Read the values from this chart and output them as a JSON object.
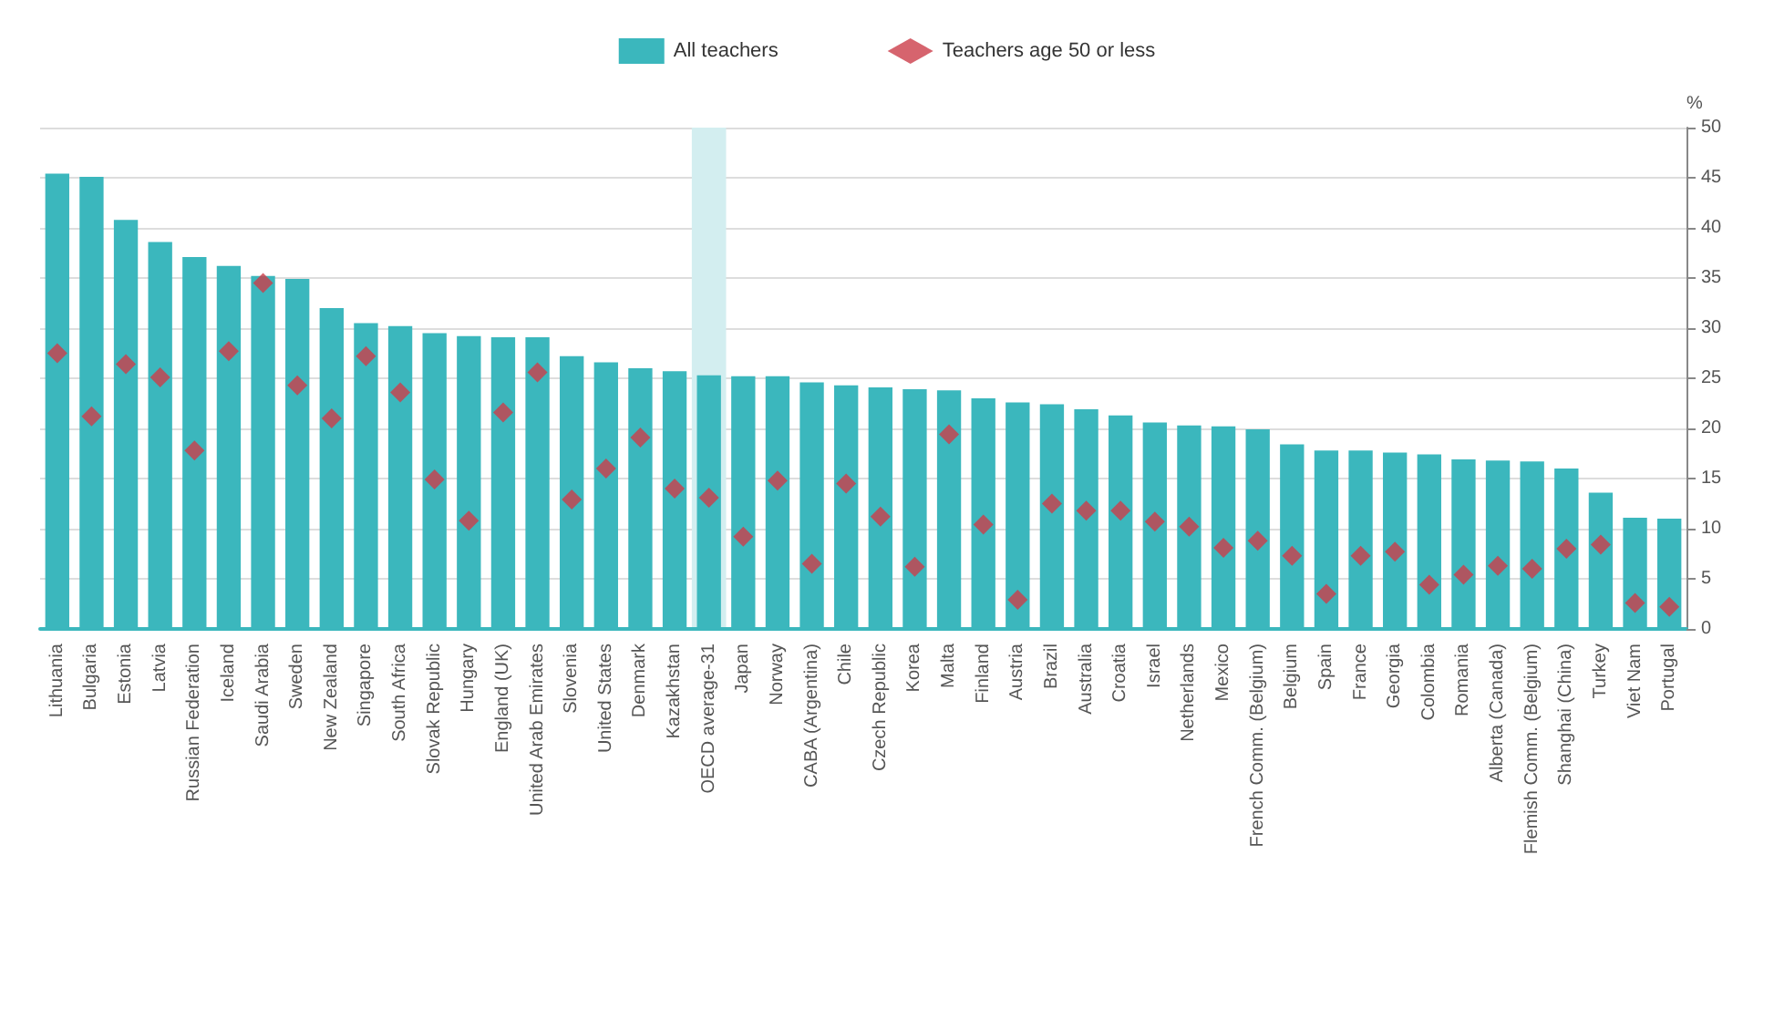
{
  "chart_data": {
    "type": "bar",
    "ylabel": "%",
    "categories": [
      "Lithuania",
      "Bulgaria",
      "Estonia",
      "Latvia",
      "Russian Federation",
      "Iceland",
      "Saudi Arabia",
      "Sweden",
      "New Zealand",
      "Singapore",
      "South Africa",
      "Slovak Republic",
      "Hungary",
      "England (UK)",
      "United Arab Emirates",
      "Slovenia",
      "United States",
      "Denmark",
      "Kazakhstan",
      "OECD average-31",
      "Japan",
      "Norway",
      "CABA (Argentina)",
      "Chile",
      "Czech Republic",
      "Korea",
      "Malta",
      "Finland",
      "Austria",
      "Brazil",
      "Australia",
      "Croatia",
      "Israel",
      "Netherlands",
      "Mexico",
      "French Comm. (Belgium)",
      "Belgium",
      "Spain",
      "France",
      "Georgia",
      "Colombia",
      "Romania",
      "Alberta (Canada)",
      "Flemish Comm. (Belgium)",
      "Shanghai (China)",
      "Turkey",
      "Viet Nam",
      "Portugal"
    ],
    "series": [
      {
        "name": "All teachers",
        "color": "#3bb7bd",
        "values": [
          45.4,
          45.1,
          40.8,
          38.6,
          37.1,
          36.2,
          35.2,
          34.9,
          32.0,
          30.5,
          30.2,
          29.5,
          29.2,
          29.1,
          29.1,
          27.2,
          26.6,
          26.0,
          25.7,
          25.3,
          25.2,
          25.2,
          24.6,
          24.3,
          24.1,
          23.9,
          23.8,
          23.0,
          22.6,
          22.4,
          21.9,
          21.3,
          20.6,
          20.3,
          20.2,
          19.9,
          18.4,
          17.8,
          17.8,
          17.6,
          17.4,
          16.9,
          16.8,
          16.7,
          16.0,
          13.6,
          11.1,
          11.0
        ]
      },
      {
        "name": "Teachers age 50 or less",
        "type": "scatter",
        "marker": "diamond",
        "color": "#cc3d4a",
        "values": [
          27.5,
          21.2,
          26.4,
          25.1,
          17.8,
          27.7,
          34.5,
          24.3,
          21.0,
          27.2,
          23.6,
          14.9,
          10.8,
          21.6,
          25.6,
          12.9,
          16.0,
          19.1,
          14.0,
          13.1,
          9.2,
          14.8,
          6.5,
          14.5,
          11.2,
          6.2,
          19.4,
          10.4,
          2.9,
          12.5,
          11.8,
          11.8,
          10.7,
          10.2,
          8.1,
          8.8,
          7.3,
          3.5,
          7.3,
          7.7,
          4.4,
          5.4,
          6.3,
          6.0,
          8.0,
          8.4,
          2.6,
          2.2
        ]
      }
    ],
    "ylim": [
      0,
      50
    ],
    "yticks": [
      0,
      5,
      10,
      15,
      20,
      25,
      30,
      35,
      40,
      45,
      50
    ],
    "grid": "y",
    "legend": "top",
    "bands": [
      {
        "axis": "x",
        "from": "OECD average-31",
        "to": "OECD average-31",
        "color": "#d3eef0"
      }
    ]
  }
}
